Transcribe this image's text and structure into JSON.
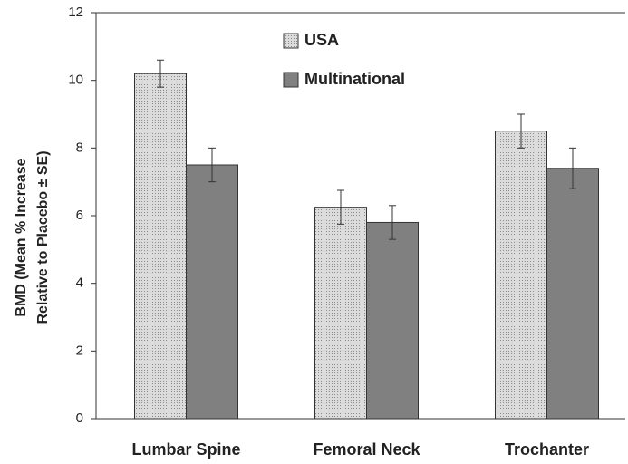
{
  "chart_data": {
    "type": "bar",
    "ylabel": [
      "BMD (Mean % Increase",
      "Relative to Placebo ± SE)"
    ],
    "categories": [
      "Lumbar Spine",
      "Femoral Neck",
      "Trochanter"
    ],
    "series": [
      {
        "name": "USA",
        "color": "#dcdcdc",
        "values": [
          10.2,
          6.25,
          8.5
        ],
        "errors": [
          0.4,
          0.5,
          0.5
        ]
      },
      {
        "name": "Multinational",
        "color": "#808080",
        "values": [
          7.5,
          5.8,
          7.4
        ],
        "errors": [
          0.5,
          0.5,
          0.6
        ]
      }
    ],
    "ylim": [
      0,
      12
    ],
    "yticks": [
      0,
      2,
      4,
      6,
      8,
      10,
      12
    ]
  }
}
